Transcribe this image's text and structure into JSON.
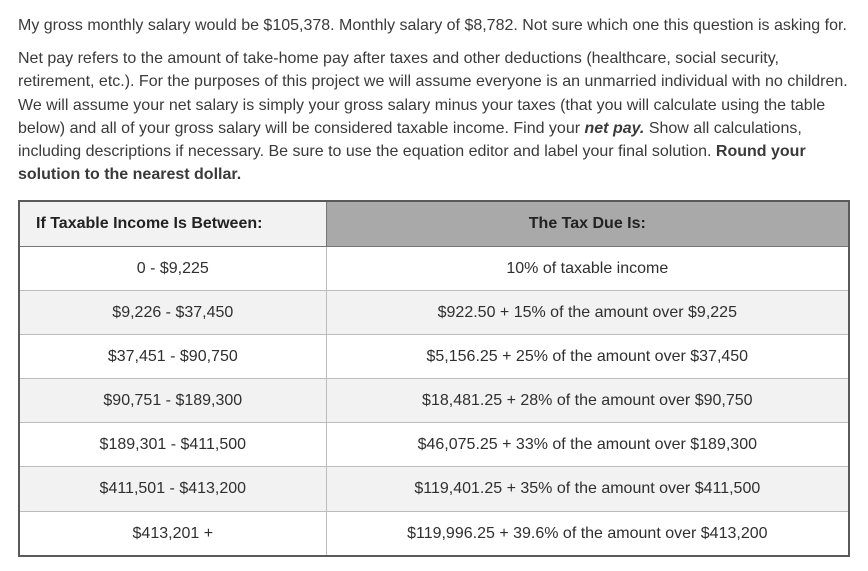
{
  "para1_a": "My gross monthly salary would be $105,378. Monthly salary of $8,782. Not sure which one this question is asking for.",
  "para2_a": "Net pay refers to the amount of take-home pay after taxes and other deductions (healthcare, social security, retirement, etc.). For the purposes of this project we will assume everyone is an unmarried individual with no children. We will assume your net salary is simply your gross salary minus your taxes (that you will calculate using the table below) and all of your gross salary will be considered taxable income. Find your ",
  "para2_em": "net pay.",
  "para2_b": " Show all calculations, including descriptions if necessary. Be sure to use the equation editor and label your final solution. ",
  "para2_bold": "Round your solution to the nearest dollar.",
  "table": {
    "head_left": "If Taxable Income Is Between:",
    "head_right": "The Tax Due Is:",
    "rows": [
      {
        "a": "0 - $9,225",
        "b": "10% of taxable income"
      },
      {
        "a": "$9,226 - $37,450",
        "b": "$922.50 + 15% of the amount over $9,225"
      },
      {
        "a": "$37,451 - $90,750",
        "b": "$5,156.25 + 25% of the amount over $37,450"
      },
      {
        "a": "$90,751 - $189,300",
        "b": "$18,481.25 + 28% of the amount over $90,750"
      },
      {
        "a": "$189,301 - $411,500",
        "b": "$46,075.25 + 33% of the amount over $189,300"
      },
      {
        "a": "$411,501 - $413,200",
        "b": "$119,401.25 + 35% of the amount over $411,500"
      },
      {
        "a": "$413,201 +",
        "b": "$119,996.25 + 39.6%  of the amount over $413,200"
      }
    ]
  }
}
